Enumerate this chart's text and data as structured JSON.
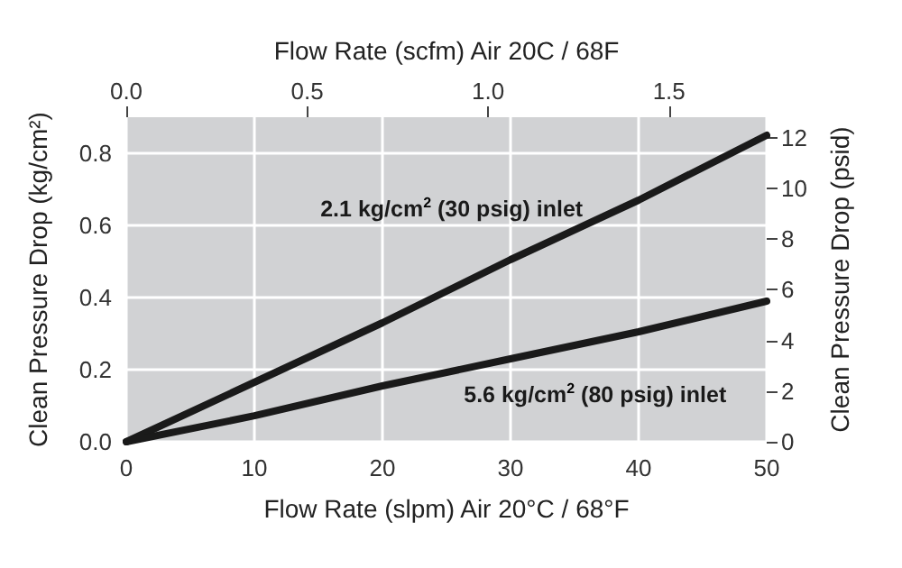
{
  "chart_data": {
    "type": "line",
    "xlabel": "Flow Rate (slpm) Air 20°C / 68°F",
    "x2label": "Flow Rate (scfm) Air 20C / 68F",
    "ylabel": "Clean Pressure Drop (kg/cm²)",
    "y2label": "Clean Pressure Drop (psid)",
    "x": [
      0,
      10,
      20,
      30,
      40,
      50
    ],
    "series": [
      {
        "color": "#1a1a1a",
        "values": [
          0,
          0.165,
          0.33,
          0.505,
          0.67,
          0.85
        ]
      },
      {
        "color": "#1a1a1a",
        "values": [
          0,
          0.072,
          0.155,
          0.23,
          0.305,
          0.39
        ]
      }
    ],
    "xlim": [
      0,
      50
    ],
    "xticks": [
      0,
      10,
      20,
      30,
      40,
      50
    ],
    "x2lim": [
      0,
      1.77
    ],
    "x2ticks": [
      {
        "value": 0,
        "label": "0.0"
      },
      {
        "value": 0.5,
        "label": "0.5"
      },
      {
        "value": 1,
        "label": "1.0"
      },
      {
        "value": 1.5,
        "label": "1.5"
      }
    ],
    "ylim": [
      0,
      0.9
    ],
    "yticks": [
      {
        "value": 0,
        "label": "0.0"
      },
      {
        "value": 0.2,
        "label": "0.2"
      },
      {
        "value": 0.4,
        "label": "0.4"
      },
      {
        "value": 0.6,
        "label": "0.6"
      },
      {
        "value": 0.8,
        "label": "0.8"
      }
    ],
    "y2lim": [
      0,
      12.8
    ],
    "y2ticks": [
      0,
      2,
      4,
      6,
      8,
      10,
      12
    ],
    "annotations": [
      "2.1 kg/cm$^{2}$ (30 psig) inlet",
      "5.6 kg/cm$^{2}$ (80 psig) inlet"
    ],
    "grid": true,
    "marker": "none",
    "line_style": "solid"
  }
}
